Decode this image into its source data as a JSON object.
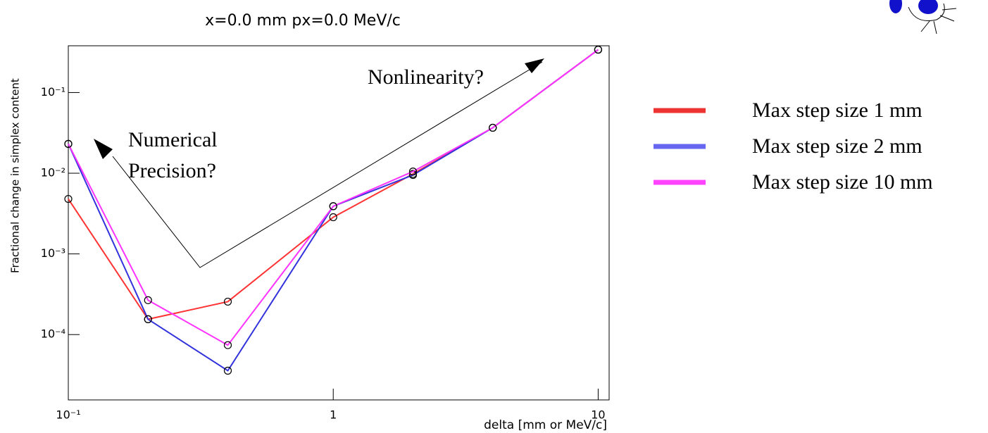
{
  "chart_data": {
    "type": "line",
    "title": "x=0.0 mm px=0.0 MeV/c",
    "x_label": "delta [mm or MeV/c]",
    "y_label": "Fractional change in simplex content",
    "x": [
      0.1,
      0.2,
      0.4,
      1,
      2,
      4,
      10
    ],
    "series": [
      {
        "name": "Max step size 1 mm",
        "color": "#ff3333",
        "values": [
          0.0048,
          0.000155,
          0.000256,
          0.00285,
          0.0098,
          0.0366,
          0.34
        ]
      },
      {
        "name": "Max step size 2 mm",
        "color": "#3333dd",
        "values": [
          0.0231,
          0.000155,
          3.57e-05,
          0.0039,
          0.0095,
          0.0366,
          0.34
        ]
      },
      {
        "name": "Max step size 10 mm",
        "color": "#ff33ff",
        "values": [
          0.0231,
          0.000267,
          7.4e-05,
          0.0039,
          0.0105,
          0.0366,
          0.34
        ]
      }
    ],
    "legend_colors": [
      "#ee3333",
      "#6666ee",
      "#ff44ff"
    ],
    "xlim": [
      0.1,
      11
    ],
    "ylim": [
      1.55e-05,
      0.38
    ],
    "log_x": true,
    "log_y": true,
    "xticks": [
      {
        "value": 0.1,
        "label": "10⁻¹"
      },
      1,
      10
    ],
    "yticks": [
      {
        "value": 0.1,
        "label": "10⁻¹"
      },
      {
        "value": 0.01,
        "label": "10⁻²"
      },
      {
        "value": 0.001,
        "label": "10⁻³"
      },
      {
        "value": 0.0001,
        "label": "10⁻⁴"
      }
    ],
    "annotations": [
      "Nonlinearity?",
      "Numerical",
      "Precision?"
    ],
    "legend": "right"
  }
}
